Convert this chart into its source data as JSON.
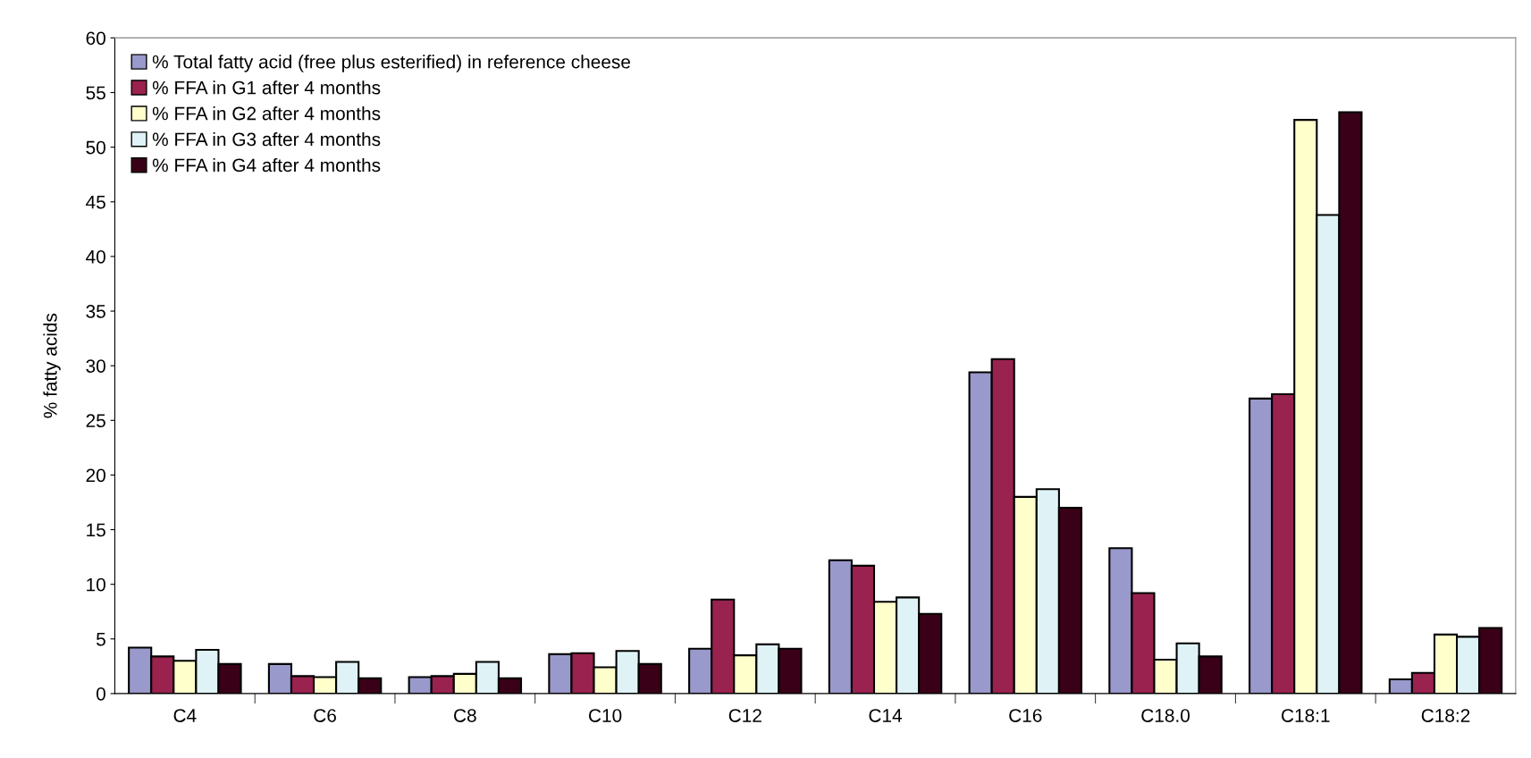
{
  "chart_data": {
    "type": "bar",
    "ylabel": "% fatty acids",
    "categories": [
      "C4",
      "C6",
      "C8",
      "C10",
      "C12",
      "C14",
      "C16",
      "C18.0",
      "C18:1",
      "C18:2"
    ],
    "series": [
      {
        "name": "% Total fatty acid (free plus esterified) in reference cheese",
        "color": "#9999cc",
        "values": [
          4.2,
          2.7,
          1.5,
          3.6,
          4.1,
          12.2,
          29.4,
          13.3,
          27.0,
          1.3
        ]
      },
      {
        "name": "% FFA in G1 after 4 months",
        "color": "#99224f",
        "values": [
          3.4,
          1.6,
          1.6,
          3.7,
          8.6,
          11.7,
          30.6,
          9.2,
          27.4,
          1.9
        ]
      },
      {
        "name": "% FFA in G2 after 4 months",
        "color": "#ffffcc",
        "values": [
          3.0,
          1.5,
          1.8,
          2.4,
          3.5,
          8.4,
          18.0,
          3.1,
          52.5,
          5.4
        ]
      },
      {
        "name": "% FFA in G3 after 4 months",
        "color": "#dff3f6",
        "values": [
          4.0,
          2.9,
          2.9,
          3.9,
          4.5,
          8.8,
          18.7,
          4.6,
          43.8,
          5.2
        ]
      },
      {
        "name": "% FFA in G4 after 4 months",
        "color": "#3a0018",
        "values": [
          2.7,
          1.4,
          1.4,
          2.7,
          4.1,
          7.3,
          17.0,
          3.4,
          53.2,
          6.0
        ]
      }
    ],
    "ylim": [
      0,
      60
    ],
    "yticks": [
      0,
      5,
      10,
      15,
      20,
      25,
      30,
      35,
      40,
      45,
      50,
      55,
      60
    ],
    "grid": false,
    "legend": "top left"
  }
}
